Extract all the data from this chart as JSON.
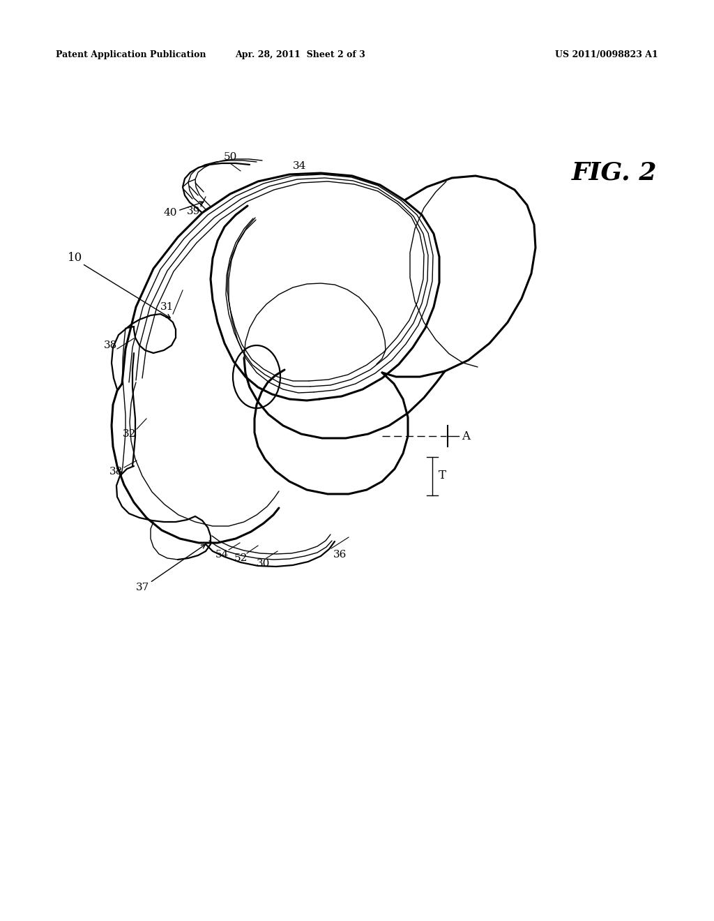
{
  "header_left": "Patent Application Publication",
  "header_center": "Apr. 28, 2011  Sheet 2 of 3",
  "header_right": "US 2011/0098823 A1",
  "fig_label": "FIG. 2",
  "background_color": "#ffffff",
  "line_color": "#000000",
  "lw_main": 1.6,
  "lw_thin": 1.0,
  "lw_thick": 2.2
}
